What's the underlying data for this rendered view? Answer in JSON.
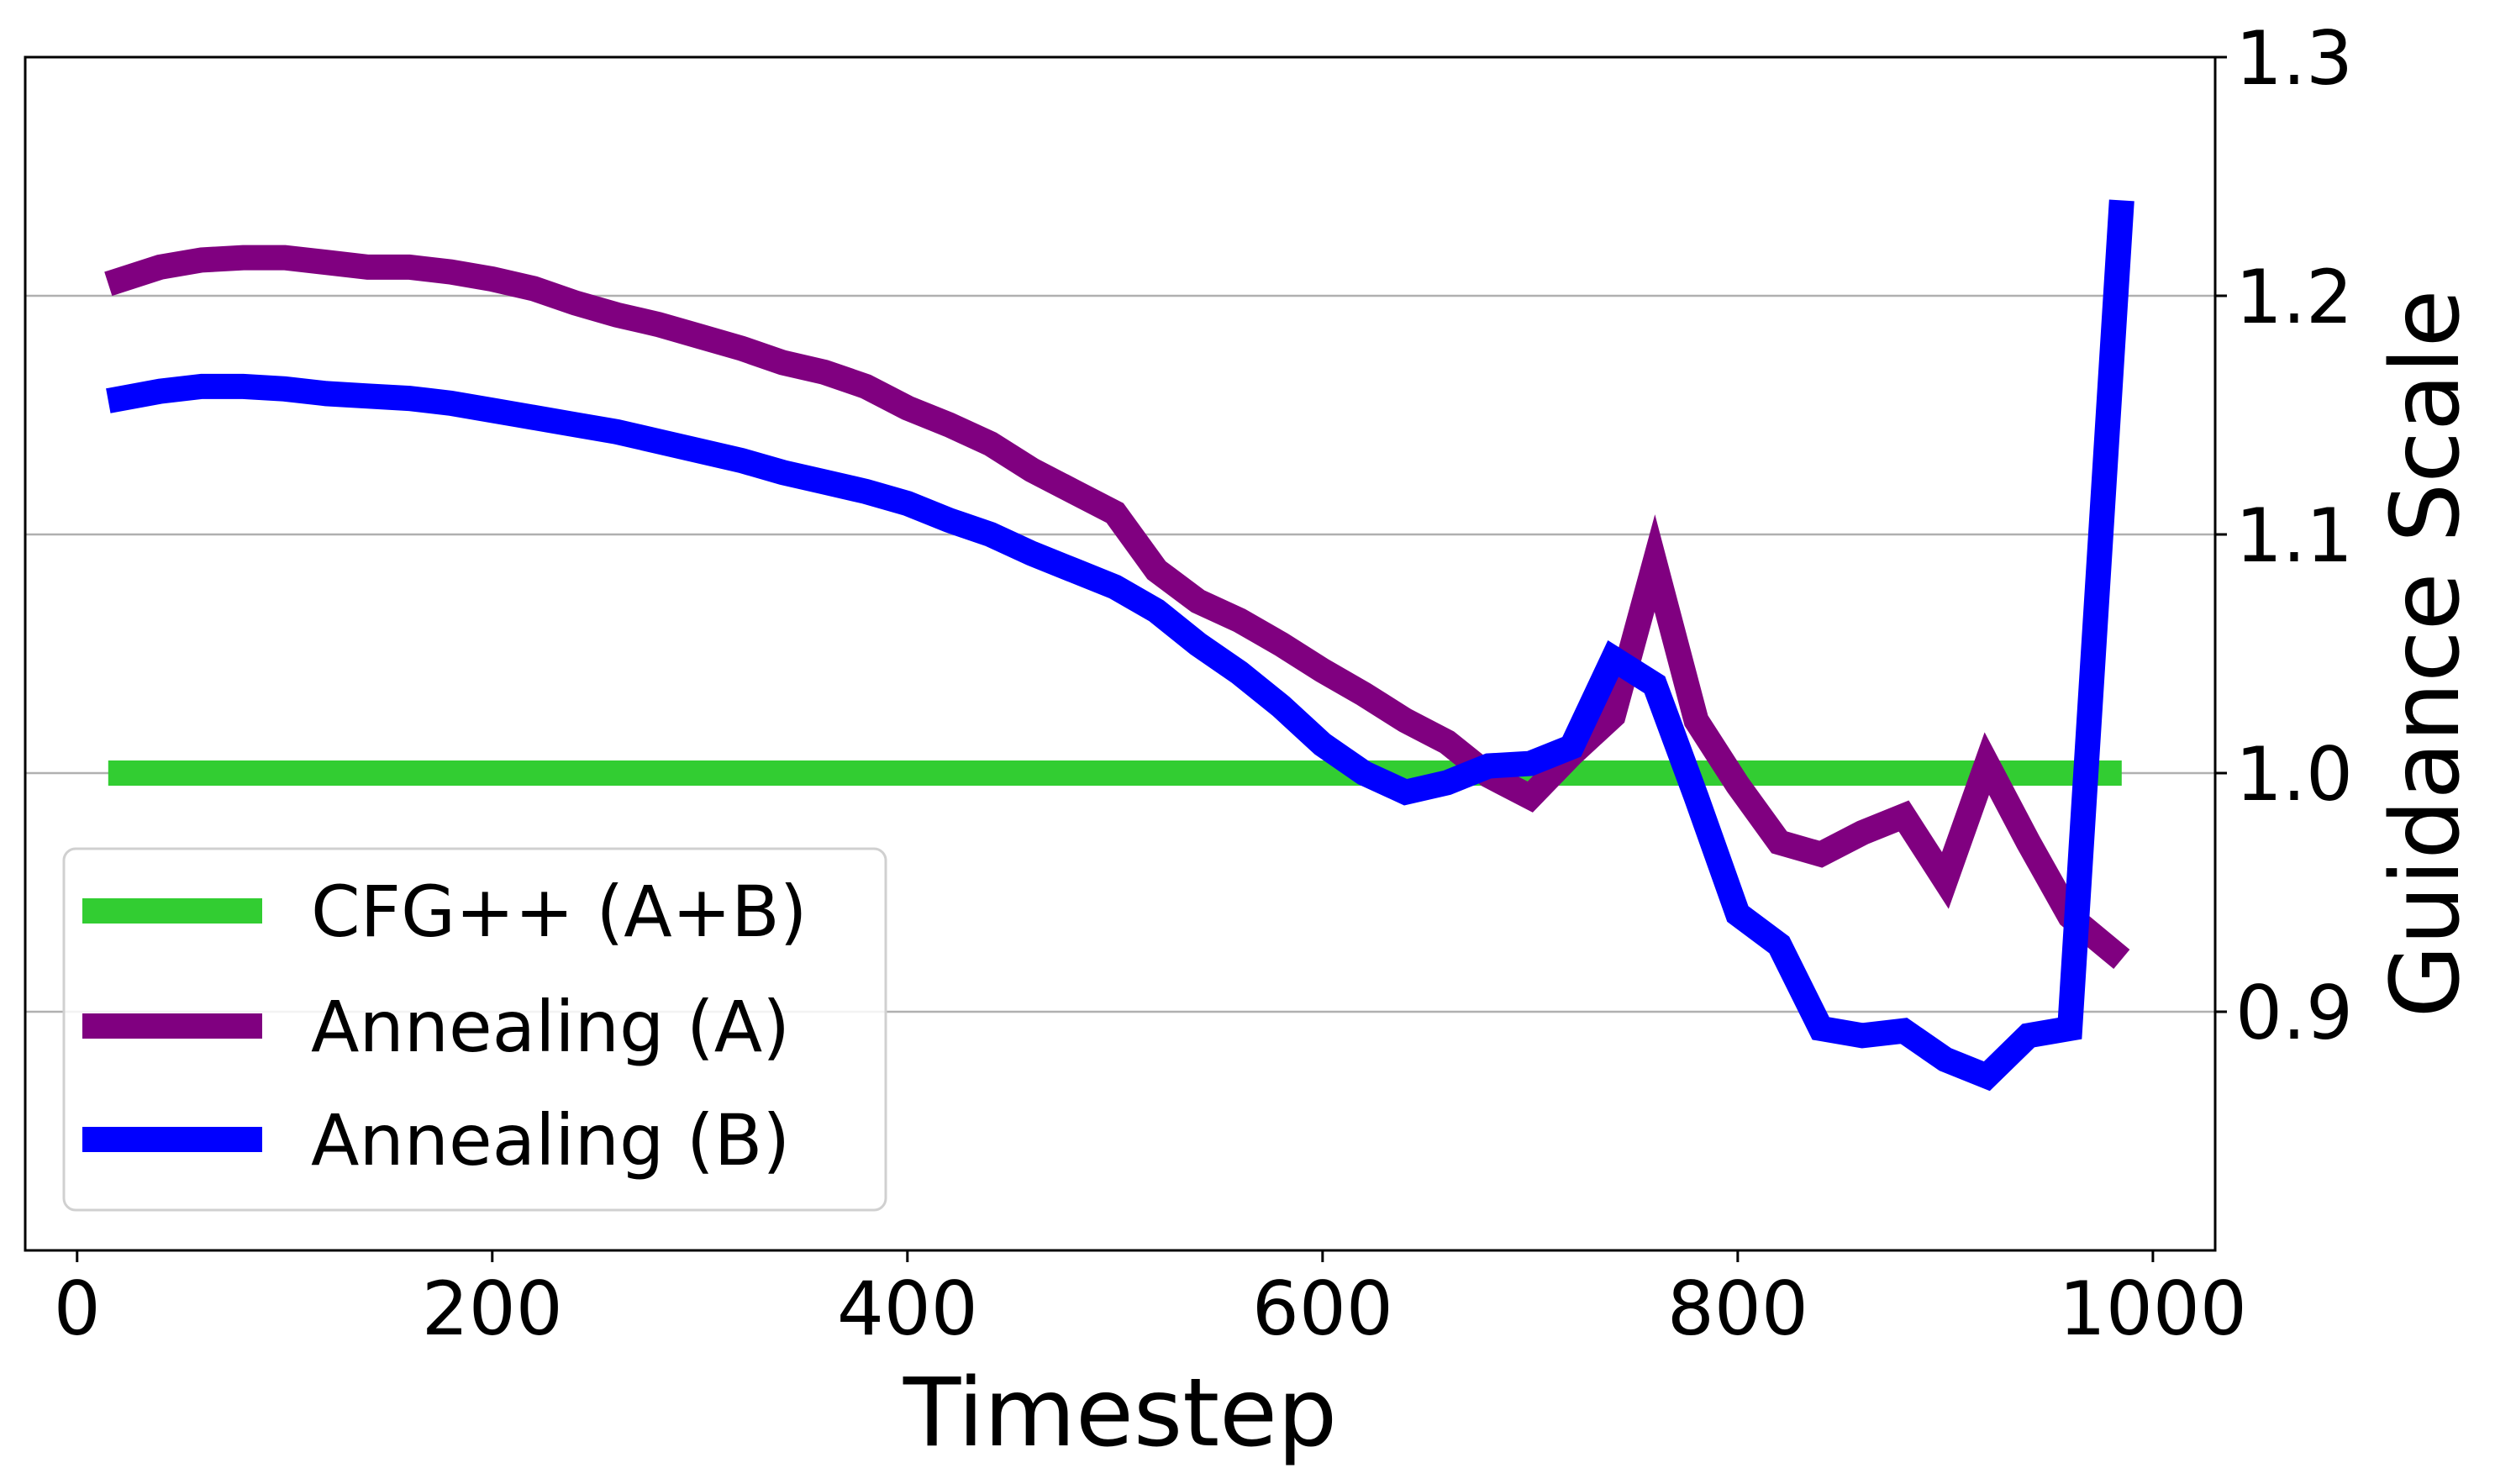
{
  "chart_data": {
    "type": "line",
    "xlabel": "Timestep",
    "ylabel": "Guidance Scale",
    "xlim": [
      -25,
      1030
    ],
    "ylim": [
      0.8,
      1.3
    ],
    "xticks": [
      0,
      200,
      400,
      600,
      800,
      1000
    ],
    "xtick_labels": [
      "0",
      "200",
      "400",
      "600",
      "800",
      "1000"
    ],
    "yticks": [
      0.9,
      1.0,
      1.1,
      1.2,
      1.3
    ],
    "ytick_labels": [
      "0.9",
      "1.0",
      "1.1",
      "1.2",
      "1.3"
    ],
    "y_axis_side": "right",
    "grid": "horizontal",
    "legend_position": "lower-left",
    "series": [
      {
        "name": "CFG++ (A+B)",
        "color": "#32cd32",
        "x": [
          15,
          985
        ],
        "y": [
          1.0,
          1.0
        ]
      },
      {
        "name": "Annealing (A)",
        "color": "#800080",
        "x": [
          15,
          40,
          60,
          80,
          100,
          120,
          140,
          160,
          180,
          200,
          220,
          240,
          260,
          280,
          300,
          320,
          340,
          360,
          380,
          400,
          420,
          440,
          460,
          480,
          500,
          520,
          540,
          560,
          580,
          600,
          620,
          640,
          660,
          680,
          700,
          720,
          740,
          760,
          780,
          800,
          820,
          840,
          860,
          880,
          900,
          920,
          940,
          960,
          985
        ],
        "y": [
          1.205,
          1.212,
          1.215,
          1.216,
          1.216,
          1.214,
          1.212,
          1.212,
          1.21,
          1.207,
          1.203,
          1.197,
          1.192,
          1.188,
          1.183,
          1.178,
          1.172,
          1.168,
          1.162,
          1.153,
          1.146,
          1.138,
          1.127,
          1.118,
          1.109,
          1.085,
          1.072,
          1.064,
          1.054,
          1.043,
          1.033,
          1.022,
          1.013,
          0.999,
          0.99,
          1.008,
          1.024,
          1.088,
          1.022,
          0.995,
          0.971,
          0.966,
          0.975,
          0.982,
          0.955,
          1.004,
          0.971,
          0.94,
          0.922
        ]
      },
      {
        "name": "Annealing (B)",
        "color": "#0000ff",
        "x": [
          15,
          40,
          60,
          80,
          100,
          120,
          140,
          160,
          180,
          200,
          220,
          240,
          260,
          280,
          300,
          320,
          340,
          360,
          380,
          400,
          420,
          440,
          460,
          480,
          500,
          520,
          540,
          560,
          580,
          600,
          620,
          640,
          660,
          680,
          700,
          720,
          740,
          760,
          780,
          800,
          820,
          840,
          860,
          880,
          900,
          920,
          940,
          960,
          985
        ],
        "y": [
          1.156,
          1.16,
          1.162,
          1.162,
          1.161,
          1.159,
          1.158,
          1.157,
          1.155,
          1.152,
          1.149,
          1.146,
          1.143,
          1.139,
          1.135,
          1.131,
          1.126,
          1.122,
          1.118,
          1.113,
          1.106,
          1.1,
          1.092,
          1.085,
          1.078,
          1.068,
          1.054,
          1.042,
          1.028,
          1.012,
          1.0,
          0.992,
          0.996,
          1.003,
          1.004,
          1.011,
          1.048,
          1.037,
          0.99,
          0.941,
          0.928,
          0.893,
          0.89,
          0.892,
          0.88,
          0.873,
          0.89,
          0.893,
          1.24
        ]
      }
    ]
  }
}
